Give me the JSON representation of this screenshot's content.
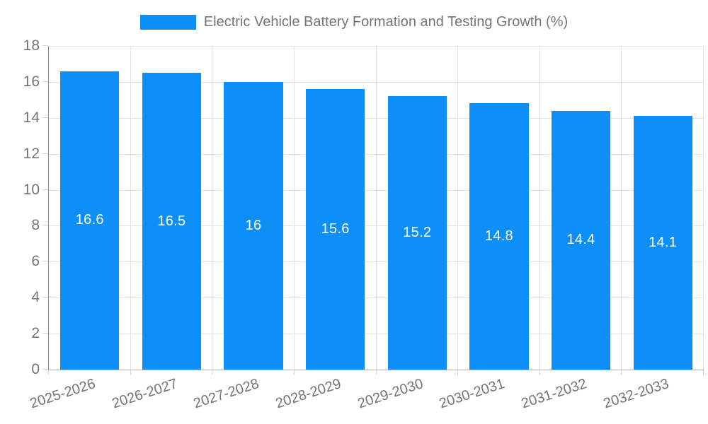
{
  "legend": {
    "title": "Electric Vehicle Battery Formation and Testing Growth (%)"
  },
  "chart_data": {
    "type": "bar",
    "title": "Electric Vehicle Battery Formation and Testing Growth (%)",
    "categories": [
      "2025-2026",
      "2026-2027",
      "2027-2028",
      "2028-2029",
      "2029-2030",
      "2030-2031",
      "2031-2032",
      "2032-2033"
    ],
    "values": [
      16.6,
      16.5,
      16,
      15.6,
      15.2,
      14.8,
      14.4,
      14.1
    ],
    "value_labels": [
      "16.6",
      "16.5",
      "16",
      "15.6",
      "15.2",
      "14.8",
      "14.4",
      "14.1"
    ],
    "xlabel": "",
    "ylabel": "",
    "ylim": [
      0,
      18
    ],
    "ytick_step": 2,
    "ytick_labels": [
      "0",
      "2",
      "4",
      "6",
      "8",
      "10",
      "12",
      "14",
      "16",
      "18"
    ],
    "grid": true,
    "legend_position": "top-center",
    "x_label_rotation_deg": -18,
    "colors": {
      "bar": "#0D8FF7",
      "bar_value_text": "#FFFFFF",
      "axis_text": "#757575",
      "grid_line": "#E4E4E4",
      "tick_line": "#D6D6D6",
      "y_axis_line": "#8A8A8A",
      "x_axis_line": "#B3B3B3",
      "background": "#FFFFFF"
    }
  }
}
